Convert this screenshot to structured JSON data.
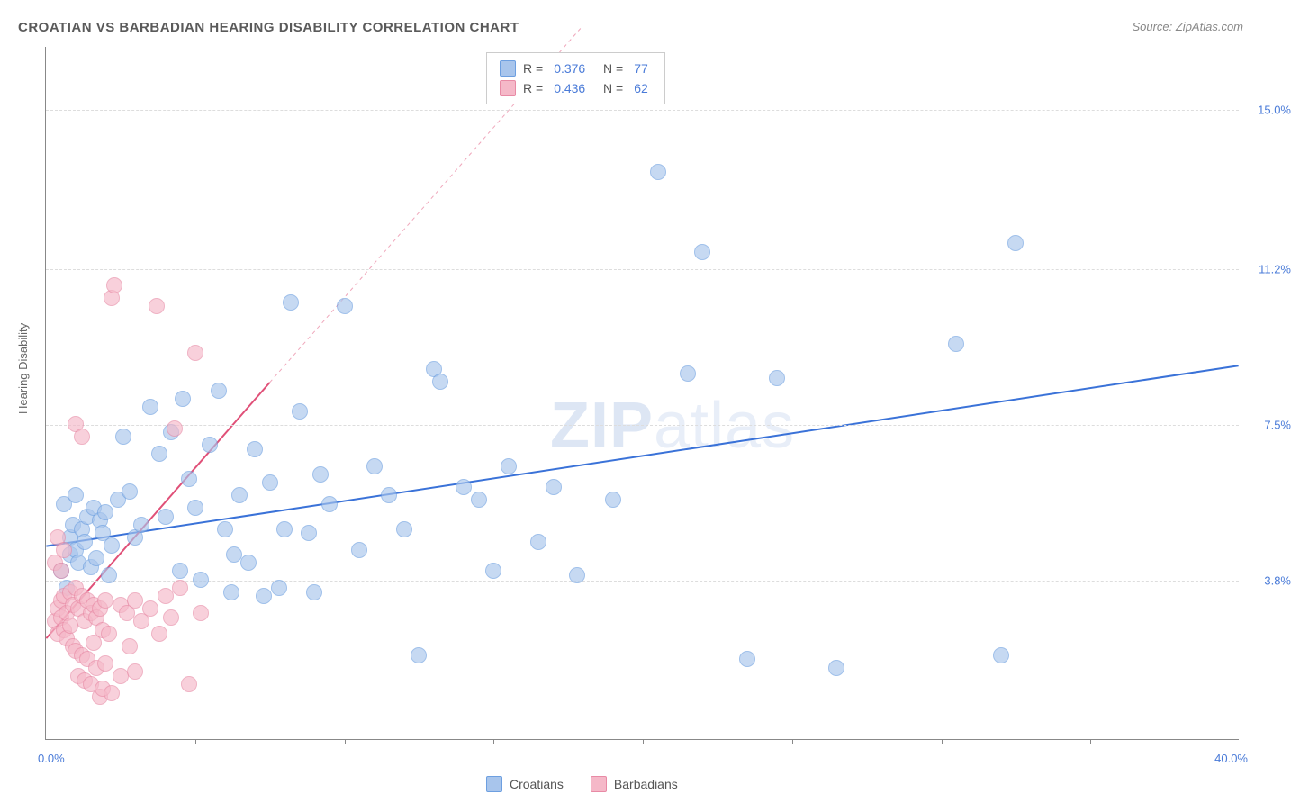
{
  "title": "CROATIAN VS BARBADIAN HEARING DISABILITY CORRELATION CHART",
  "source": "Source: ZipAtlas.com",
  "watermark_a": "ZIP",
  "watermark_b": "atlas",
  "yaxis_title": "Hearing Disability",
  "chart": {
    "type": "scatter",
    "background": "#ffffff",
    "grid_color": "#dddddd",
    "axis_color": "#888888",
    "xlim": [
      0.0,
      40.0
    ],
    "ylim": [
      0.0,
      16.5
    ],
    "yticks": [
      3.8,
      7.5,
      11.2,
      15.0
    ],
    "ytick_labels": [
      "3.8%",
      "7.5%",
      "11.2%",
      "15.0%"
    ],
    "xticks_minor": [
      5,
      10,
      15,
      20,
      25,
      30,
      35
    ],
    "xlabel_min": "0.0%",
    "xlabel_max": "40.0%",
    "title_fontsize": 15,
    "label_fontsize": 13,
    "tick_fontsize": 13,
    "tick_color": "#4a7bd8",
    "marker_size": 18,
    "marker_opacity": 0.65
  },
  "series": [
    {
      "name": "Croatians",
      "color_fill": "#a8c5ec",
      "color_stroke": "#6d9fe0",
      "trend": {
        "x1": 0,
        "y1": 4.6,
        "x2": 40,
        "y2": 8.9,
        "dash_after_x": 40,
        "color": "#3a72d8",
        "width": 2
      },
      "R": "0.376",
      "N": "77",
      "points": [
        [
          0.5,
          4.0
        ],
        [
          0.7,
          3.6
        ],
        [
          0.8,
          4.4
        ],
        [
          0.8,
          4.8
        ],
        [
          0.9,
          5.1
        ],
        [
          1.0,
          4.5
        ],
        [
          1.1,
          4.2
        ],
        [
          1.2,
          5.0
        ],
        [
          1.3,
          4.7
        ],
        [
          1.4,
          5.3
        ],
        [
          1.5,
          4.1
        ],
        [
          1.6,
          5.5
        ],
        [
          1.7,
          4.3
        ],
        [
          1.8,
          5.2
        ],
        [
          1.9,
          4.9
        ],
        [
          2.0,
          5.4
        ],
        [
          2.2,
          4.6
        ],
        [
          2.4,
          5.7
        ],
        [
          2.6,
          7.2
        ],
        [
          2.8,
          5.9
        ],
        [
          3.0,
          4.8
        ],
        [
          3.2,
          5.1
        ],
        [
          3.5,
          7.9
        ],
        [
          3.8,
          6.8
        ],
        [
          4.0,
          5.3
        ],
        [
          4.2,
          7.3
        ],
        [
          4.5,
          4.0
        ],
        [
          4.8,
          6.2
        ],
        [
          5.0,
          5.5
        ],
        [
          5.2,
          3.8
        ],
        [
          5.5,
          7.0
        ],
        [
          5.8,
          8.3
        ],
        [
          6.0,
          5.0
        ],
        [
          6.2,
          3.5
        ],
        [
          6.5,
          5.8
        ],
        [
          6.8,
          4.2
        ],
        [
          7.0,
          6.9
        ],
        [
          7.3,
          3.4
        ],
        [
          7.5,
          6.1
        ],
        [
          7.8,
          3.6
        ],
        [
          8.0,
          5.0
        ],
        [
          8.2,
          10.4
        ],
        [
          8.5,
          7.8
        ],
        [
          9.0,
          3.5
        ],
        [
          9.2,
          6.3
        ],
        [
          9.5,
          5.6
        ],
        [
          10.0,
          10.3
        ],
        [
          10.5,
          4.5
        ],
        [
          11.0,
          6.5
        ],
        [
          11.5,
          5.8
        ],
        [
          12.0,
          5.0
        ],
        [
          12.5,
          2.0
        ],
        [
          13.0,
          8.8
        ],
        [
          13.2,
          8.5
        ],
        [
          14.0,
          6.0
        ],
        [
          14.5,
          5.7
        ],
        [
          15.0,
          4.0
        ],
        [
          15.5,
          6.5
        ],
        [
          16.5,
          4.7
        ],
        [
          17.0,
          6.0
        ],
        [
          17.8,
          3.9
        ],
        [
          19.0,
          5.7
        ],
        [
          20.5,
          13.5
        ],
        [
          21.5,
          8.7
        ],
        [
          22.0,
          11.6
        ],
        [
          23.5,
          1.9
        ],
        [
          24.5,
          8.6
        ],
        [
          26.5,
          1.7
        ],
        [
          30.5,
          9.4
        ],
        [
          32.0,
          2.0
        ],
        [
          32.5,
          11.8
        ],
        [
          0.6,
          5.6
        ],
        [
          1.0,
          5.8
        ],
        [
          2.1,
          3.9
        ],
        [
          4.6,
          8.1
        ],
        [
          6.3,
          4.4
        ],
        [
          8.8,
          4.9
        ]
      ]
    },
    {
      "name": "Barbadians",
      "color_fill": "#f5b8c8",
      "color_stroke": "#e88aa5",
      "trend": {
        "x1": 0,
        "y1": 2.4,
        "x2": 7.5,
        "y2": 8.5,
        "dash_after_x": 7.5,
        "dash_x2": 18,
        "dash_y2": 17,
        "color": "#e05078",
        "width": 2
      },
      "R": "0.436",
      "N": "62",
      "points": [
        [
          0.3,
          2.8
        ],
        [
          0.4,
          3.1
        ],
        [
          0.4,
          2.5
        ],
        [
          0.5,
          3.3
        ],
        [
          0.5,
          2.9
        ],
        [
          0.6,
          2.6
        ],
        [
          0.6,
          3.4
        ],
        [
          0.7,
          3.0
        ],
        [
          0.7,
          2.4
        ],
        [
          0.8,
          3.5
        ],
        [
          0.8,
          2.7
        ],
        [
          0.9,
          3.2
        ],
        [
          0.9,
          2.2
        ],
        [
          1.0,
          3.6
        ],
        [
          1.0,
          2.1
        ],
        [
          1.1,
          3.1
        ],
        [
          1.1,
          1.5
        ],
        [
          1.2,
          3.4
        ],
        [
          1.2,
          2.0
        ],
        [
          1.3,
          2.8
        ],
        [
          1.3,
          1.4
        ],
        [
          1.4,
          3.3
        ],
        [
          1.4,
          1.9
        ],
        [
          1.5,
          3.0
        ],
        [
          1.5,
          1.3
        ],
        [
          1.6,
          3.2
        ],
        [
          1.6,
          2.3
        ],
        [
          1.7,
          1.7
        ],
        [
          1.7,
          2.9
        ],
        [
          1.8,
          1.0
        ],
        [
          1.8,
          3.1
        ],
        [
          1.9,
          2.6
        ],
        [
          1.9,
          1.2
        ],
        [
          2.0,
          3.3
        ],
        [
          2.0,
          1.8
        ],
        [
          2.1,
          2.5
        ],
        [
          2.2,
          1.1
        ],
        [
          2.2,
          10.5
        ],
        [
          2.3,
          10.8
        ],
        [
          2.5,
          3.2
        ],
        [
          2.5,
          1.5
        ],
        [
          2.7,
          3.0
        ],
        [
          2.8,
          2.2
        ],
        [
          3.0,
          3.3
        ],
        [
          3.0,
          1.6
        ],
        [
          3.2,
          2.8
        ],
        [
          3.5,
          3.1
        ],
        [
          3.7,
          10.3
        ],
        [
          3.8,
          2.5
        ],
        [
          4.0,
          3.4
        ],
        [
          4.2,
          2.9
        ],
        [
          4.3,
          7.4
        ],
        [
          4.5,
          3.6
        ],
        [
          4.8,
          1.3
        ],
        [
          5.0,
          9.2
        ],
        [
          5.2,
          3.0
        ],
        [
          1.0,
          7.5
        ],
        [
          1.2,
          7.2
        ],
        [
          0.3,
          4.2
        ],
        [
          0.4,
          4.8
        ],
        [
          0.5,
          4.0
        ],
        [
          0.6,
          4.5
        ]
      ]
    }
  ],
  "legend_labels": {
    "R": "R",
    "N": "N",
    "equals": "="
  },
  "bottom_legend": [
    "Croatians",
    "Barbadians"
  ]
}
